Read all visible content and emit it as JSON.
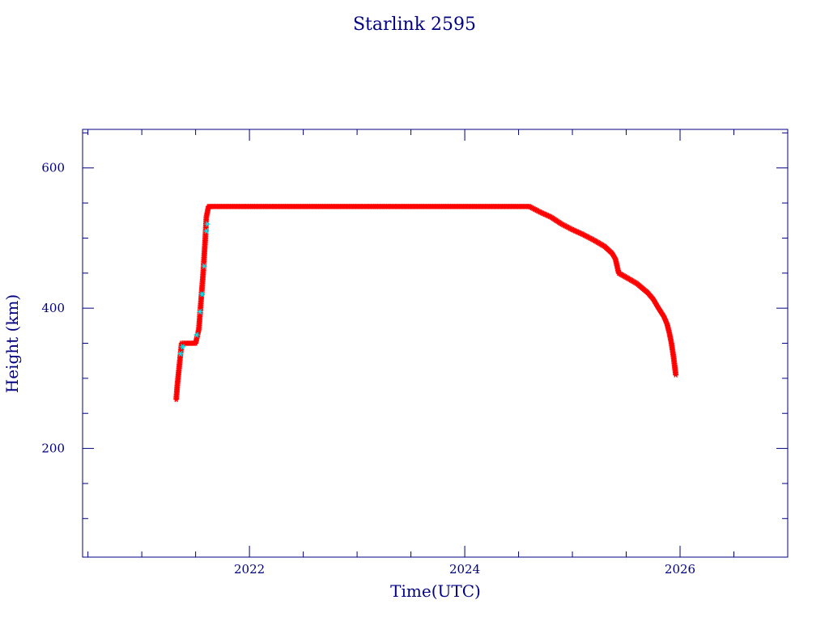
{
  "chart_data": {
    "type": "scatter",
    "title": "Starlink 2595",
    "xlabel": "Time(UTC)",
    "ylabel": "Height (km)",
    "xlim": [
      2020.45,
      2027.0
    ],
    "ylim": [
      45,
      655
    ],
    "x_ticks": [
      "2022",
      "2024",
      "2026"
    ],
    "y_ticks": [
      "200",
      "400",
      "600"
    ],
    "x_tick_values": [
      2022,
      2024,
      2026
    ],
    "y_tick_values": [
      200,
      400,
      600
    ],
    "x_minor_tick_values": [
      2020.5,
      2021,
      2021.5,
      2022.5,
      2023,
      2023.5,
      2024.5,
      2025,
      2025.5,
      2026.5
    ],
    "y_minor_tick_values": [
      100,
      150,
      250,
      300,
      350,
      450,
      500,
      550,
      650
    ],
    "grid": false,
    "colors": {
      "axis": "#000080",
      "series_main": "#ff0000",
      "series_secondary": "#00e5ee",
      "connector": "#666666"
    },
    "series": [
      {
        "color": "#ff0000",
        "marker": "asterisk",
        "x": [
          2021.32,
          2021.33,
          2021.35,
          2021.37,
          2021.4,
          2021.45,
          2021.5,
          2021.53,
          2021.55,
          2021.57,
          2021.59,
          2021.6,
          2021.62,
          2022.0,
          2022.5,
          2023.0,
          2023.5,
          2024.0,
          2024.3,
          2024.6,
          2024.7,
          2024.8,
          2024.9,
          2025.0,
          2025.1,
          2025.2,
          2025.3,
          2025.37,
          2025.4,
          2025.43,
          2025.5,
          2025.6,
          2025.7,
          2025.75,
          2025.8,
          2025.85,
          2025.88,
          2025.9,
          2025.92,
          2025.94,
          2025.96
        ],
        "y": [
          270,
          290,
          320,
          350,
          350,
          350,
          350,
          370,
          410,
          450,
          500,
          530,
          545,
          545,
          545,
          545,
          545,
          545,
          545,
          545,
          537,
          530,
          520,
          512,
          505,
          497,
          488,
          478,
          470,
          450,
          444,
          435,
          422,
          413,
          400,
          388,
          377,
          365,
          350,
          330,
          305
        ]
      },
      {
        "color": "#00e5ee",
        "marker": "asterisk",
        "x": [
          2021.36,
          2021.38,
          2021.51,
          2021.54,
          2021.56,
          2021.58,
          2021.6,
          2021.61
        ],
        "y": [
          335,
          345,
          362,
          395,
          420,
          460,
          510,
          520
        ]
      }
    ]
  }
}
